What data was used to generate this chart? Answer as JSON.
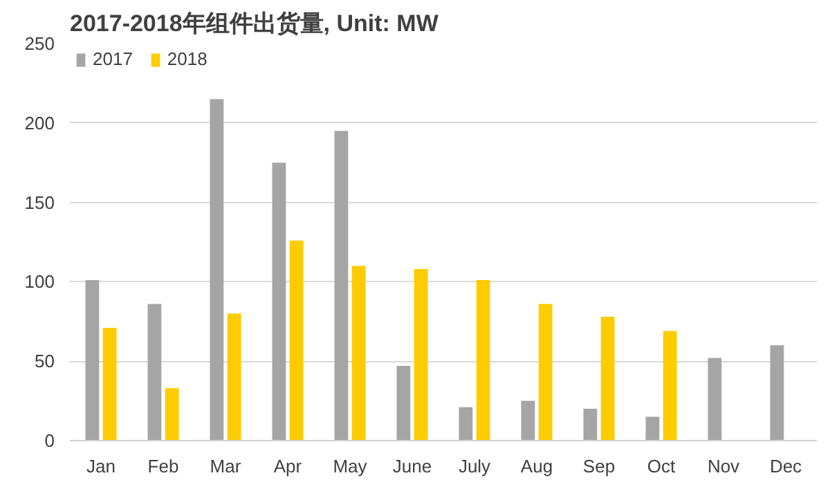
{
  "chart_data": {
    "type": "bar",
    "title": "2017-2018年组件出货量, Unit: MW",
    "categories": [
      "Jan",
      "Feb",
      "Mar",
      "Apr",
      "May",
      "June",
      "July",
      "Aug",
      "Sep",
      "Oct",
      "Nov",
      "Dec"
    ],
    "series": [
      {
        "name": "2017",
        "color": "#a5a5a5",
        "values": [
          101,
          86,
          215,
          175,
          195,
          47,
          21,
          25,
          20,
          15,
          52,
          60
        ]
      },
      {
        "name": "2018",
        "color": "#ffcc00",
        "values": [
          71,
          33,
          80,
          126,
          110,
          108,
          101,
          86,
          78,
          69,
          null,
          null
        ]
      }
    ],
    "ylim": [
      0,
      250
    ],
    "yticks": [
      0,
      50,
      100,
      150,
      200,
      250
    ],
    "grid": "y",
    "legend": "top left"
  }
}
